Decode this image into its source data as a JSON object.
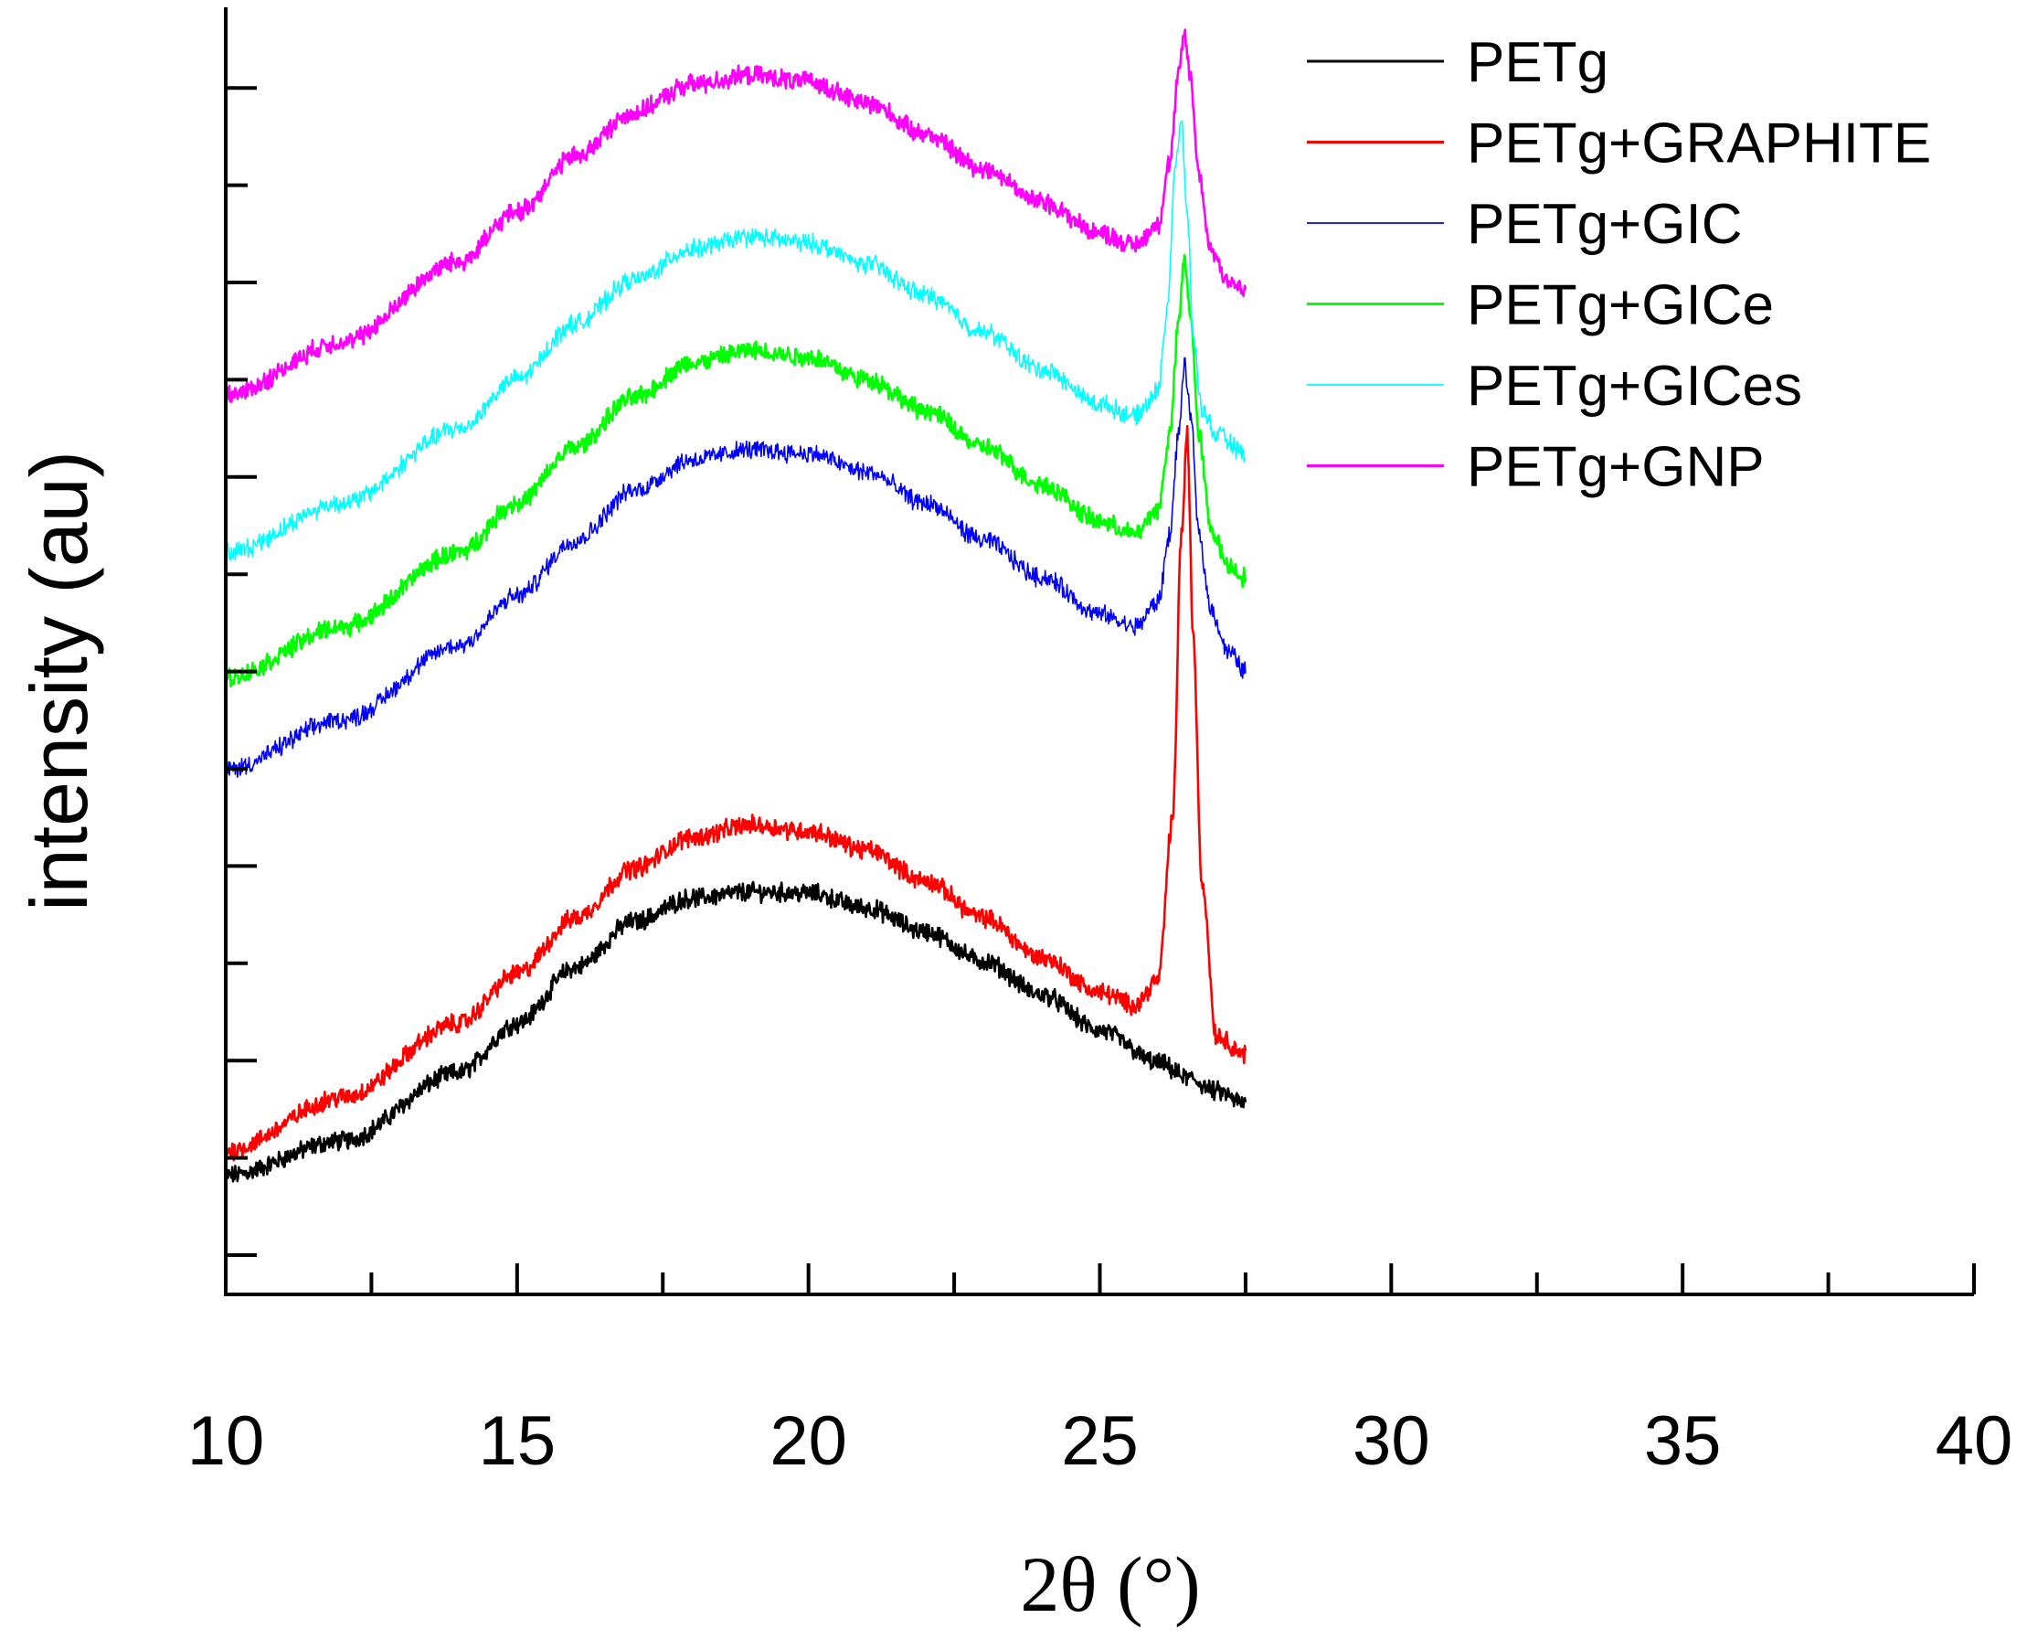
{
  "chart_data": {
    "type": "line",
    "title": "",
    "xlabel": "2θ  (°)",
    "ylabel": "intensity (au)",
    "xlim": [
      10,
      40
    ],
    "ylim": [
      0,
      100
    ],
    "x_ticks": [
      10,
      15,
      20,
      25,
      30,
      35,
      40
    ],
    "x_tick_labels": [
      "10",
      "15",
      "20",
      "25",
      "30",
      "35",
      "40"
    ],
    "y_tick_labels": [],
    "legend_position": "top-right",
    "series": [
      {
        "name": "PETg",
        "color": "#000000",
        "x": [
          10,
          12,
          14,
          15,
          16,
          17,
          18,
          19,
          20,
          21,
          22,
          23,
          24,
          25,
          26,
          26.5,
          27,
          27.5
        ],
        "values": [
          6.2,
          9,
          14.5,
          18.5,
          23,
          26.7,
          28.6,
          29.1,
          29,
          27.8,
          25.9,
          23.5,
          20.8,
          17.9,
          15.3,
          14.1,
          13,
          12
        ]
      },
      {
        "name": "PETg+GRAPHITE",
        "color": "#ff0000",
        "x": [
          10,
          12,
          14,
          15,
          16,
          17,
          18,
          19,
          20,
          21,
          22,
          23,
          24,
          25,
          25.6,
          26,
          26.25,
          26.4,
          26.5,
          26.6,
          26.75,
          27,
          27.5
        ],
        "values": [
          8.2,
          12.5,
          18.5,
          22.5,
          27,
          31,
          33.5,
          34.5,
          34,
          32.5,
          30,
          27,
          23.8,
          21,
          20,
          22,
          35,
          58,
          66,
          50,
          30,
          17.5,
          16
        ]
      },
      {
        "name": "PETg+GIC",
        "color": "#0000ff",
        "x": [
          10,
          12,
          14,
          15,
          16,
          17,
          18,
          19,
          20,
          21,
          22,
          23,
          24,
          25,
          25.6,
          26,
          26.2,
          26.35,
          26.45,
          26.55,
          26.7,
          26.9,
          27.2,
          27.5
        ],
        "values": [
          39,
          43,
          49,
          53,
          57.5,
          61.5,
          64,
          64.8,
          64.5,
          63,
          60.5,
          57.5,
          54.5,
          51.5,
          50.5,
          52.5,
          58,
          66,
          71.5,
          68,
          58,
          52,
          48.5,
          47
        ]
      },
      {
        "name": "PETg+GICe",
        "color": "#00ff00",
        "x": [
          10,
          12,
          14,
          15,
          16,
          17,
          18,
          19,
          20,
          21,
          22,
          23,
          24,
          25,
          25.6,
          26,
          26.2,
          26.35,
          26.45,
          26.55,
          26.7,
          26.9,
          27.2,
          27.5
        ],
        "values": [
          46.4,
          50.5,
          56.5,
          60.5,
          65,
          69,
          71.8,
          72.8,
          72.3,
          70.5,
          68,
          65,
          62,
          59,
          58,
          60,
          66,
          75,
          80.2,
          76,
          66,
          58.5,
          55.5,
          54.5
        ]
      },
      {
        "name": "PETg+GICes",
        "color": "#00ffff",
        "x": [
          10,
          12,
          14,
          15,
          16,
          17,
          18,
          19,
          20,
          21,
          22,
          23,
          24,
          25,
          25.6,
          26,
          26.15,
          26.3,
          26.4,
          26.5,
          26.6,
          26.75,
          27,
          27.5
        ],
        "values": [
          56.5,
          60.5,
          66.5,
          70.5,
          75,
          78.5,
          81,
          82,
          81.5,
          79.8,
          77.3,
          74.3,
          71.3,
          68.5,
          67.5,
          69.5,
          76,
          88,
          91,
          84,
          74,
          68,
          66,
          64.5
        ]
      },
      {
        "name": "PETg+GNP",
        "color": "#ff00ff",
        "x": [
          10,
          12,
          14,
          15,
          16,
          17,
          18,
          19,
          20,
          21,
          22,
          23,
          24,
          25,
          25.6,
          26,
          26.2,
          26.35,
          26.45,
          26.55,
          26.7,
          26.9,
          27.2,
          27.5
        ],
        "values": [
          69.2,
          73.5,
          80,
          84,
          88.5,
          92,
          94.3,
          95,
          94.5,
          92.8,
          90.3,
          87.5,
          84.8,
          82.3,
          81.3,
          83,
          88,
          95,
          98.4,
          95,
          87,
          81,
          78.5,
          77.5
        ]
      }
    ]
  }
}
